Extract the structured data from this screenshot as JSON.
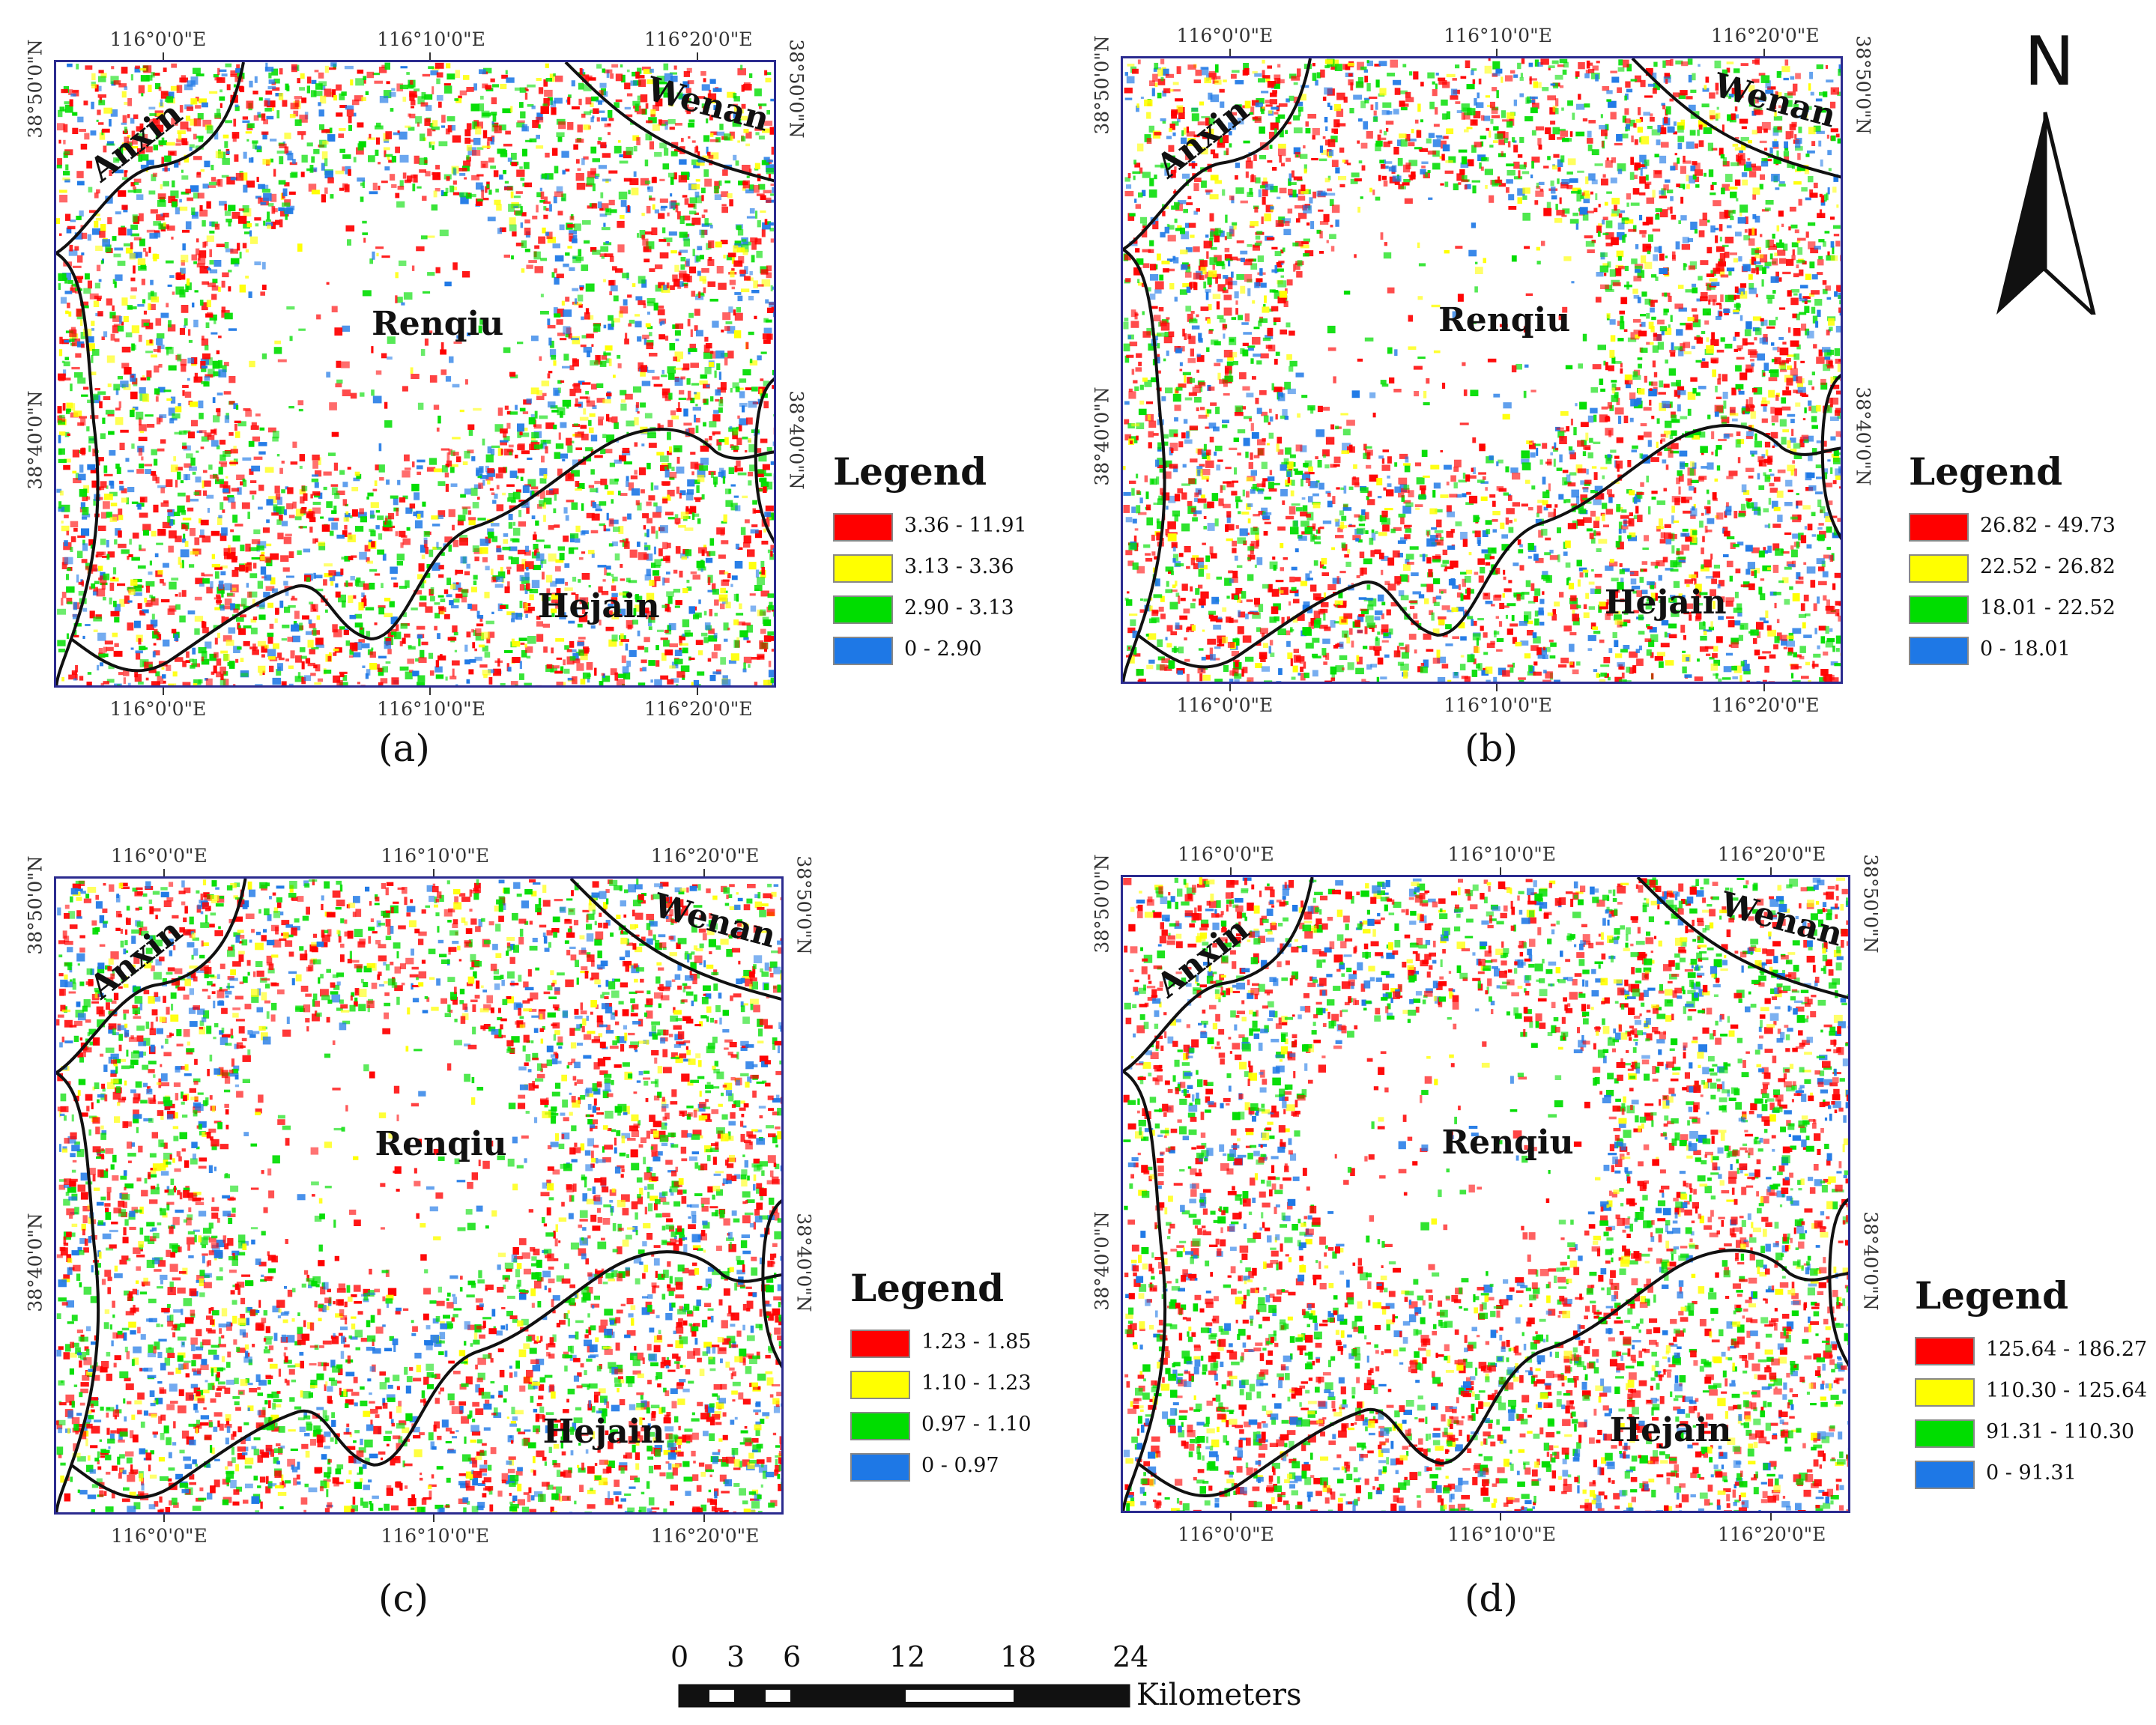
{
  "north_arrow": {
    "letter": "N"
  },
  "lon_ticks": [
    "116°0'0\"E",
    "116°10'0\"E",
    "116°20'0\"E"
  ],
  "lat_ticks": [
    "38°50'0\"N",
    "38°40'0\"N"
  ],
  "places": {
    "anxin": "Anxin",
    "wenan": "Wenan",
    "renqiu": "Renqiu",
    "hejain": "Hejain"
  },
  "colors": {
    "class1": "#ff0000",
    "class2": "#ffff00",
    "class3": "#00dd00",
    "class4": "#1e78e6",
    "boundary": "#111111",
    "frame": "#2b2b8f"
  },
  "panels": [
    {
      "label": "(a)",
      "legend_title": "Legend",
      "classes": [
        "3.36 - 11.91",
        "3.13 - 3.36",
        "2.90 - 3.13",
        "0 - 2.90"
      ]
    },
    {
      "label": "(b)",
      "legend_title": "Legend",
      "classes": [
        "26.82 - 49.73",
        "22.52 - 26.82",
        "18.01 - 22.52",
        "0 - 18.01"
      ]
    },
    {
      "label": "(c)",
      "legend_title": "Legend",
      "classes": [
        "1.23 - 1.85",
        "1.10 - 1.23",
        "0.97 - 1.10",
        "0 - 0.97"
      ]
    },
    {
      "label": "(d)",
      "legend_title": "Legend",
      "classes": [
        "125.64 - 186.27",
        "110.30 - 125.64",
        "91.31 - 110.30",
        "0 - 91.31"
      ]
    }
  ],
  "scale_bar": {
    "ticks": [
      "0",
      "3",
      "6",
      "12",
      "18",
      "24"
    ],
    "unit": "Kilometers"
  }
}
